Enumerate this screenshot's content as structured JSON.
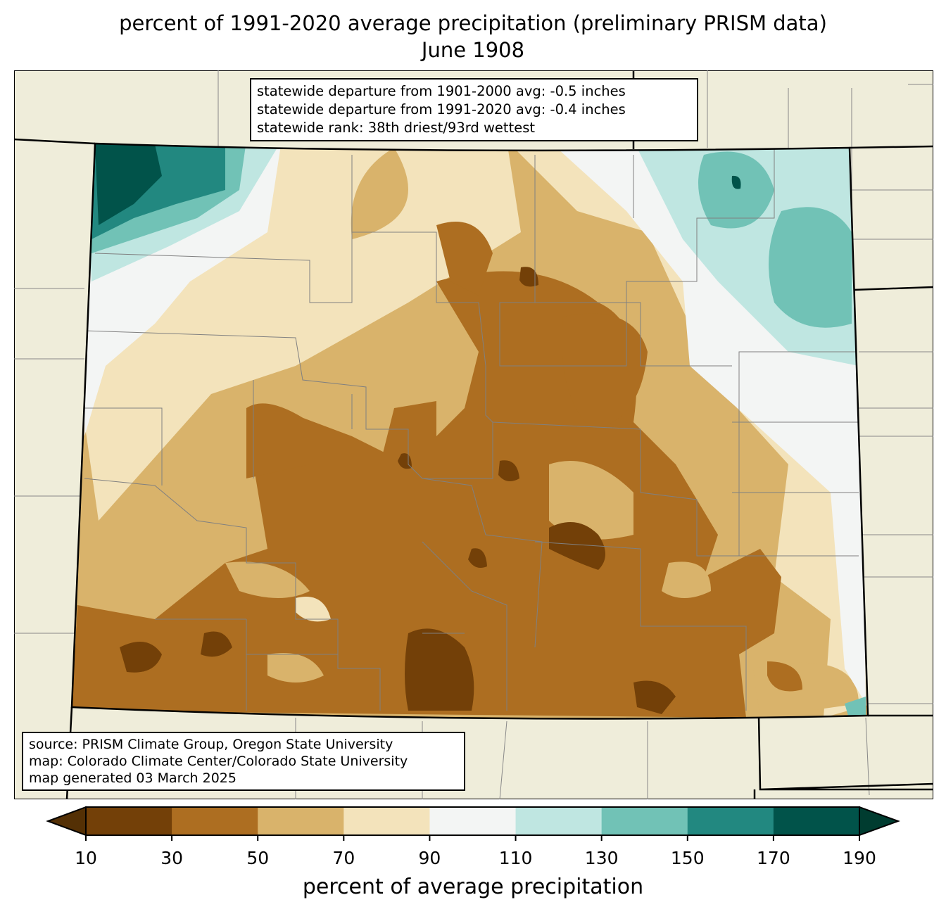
{
  "title": "percent of 1991-2020 average precipitation (preliminary PRISM data)",
  "subtitle": "June 1908",
  "stats": {
    "line1": "statewide departure from 1901-2000 avg: -0.5 inches",
    "line2": "statewide departure from 1991-2020 avg: -0.4 inches",
    "line3": "statewide rank: 38th driest/93rd wettest"
  },
  "credits": {
    "line1": "source: PRISM Climate Group, Oregon State University",
    "line2": "map: Colorado Climate Center/Colorado State University",
    "line3": "map generated 03 March 2025"
  },
  "colorbar": {
    "label": "percent of average precipitation",
    "ticks": [
      "10",
      "30",
      "50",
      "70",
      "90",
      "110",
      "130",
      "150",
      "170",
      "190"
    ],
    "colors": [
      "#734008",
      "#ad6e21",
      "#d9b36b",
      "#f3e3bb",
      "#f3f5f4",
      "#bfe6e1",
      "#71c2b6",
      "#228880",
      "#01534a"
    ],
    "under_color": "#543005",
    "over_color": "#003c30"
  },
  "background_color": "#efedda"
}
